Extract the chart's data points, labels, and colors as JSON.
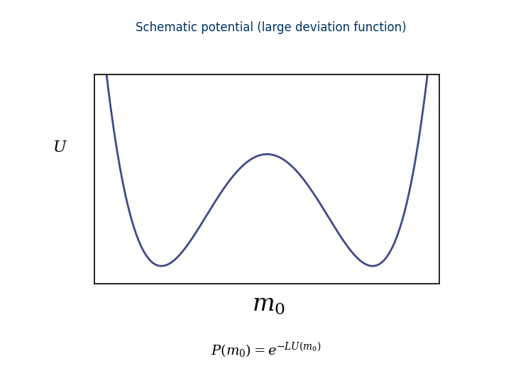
{
  "title": "Schematic potential (large deviation function)",
  "title_color": "#003366",
  "title_fontsize": 12,
  "curve_color": "#3f4a8a",
  "curve_linewidth": 2.0,
  "ylabel_text": "U",
  "ylabel_fontsize": 16,
  "xlabel_math": "$\\mathbf{\\mathit{m}}_0$",
  "xlabel_fontsize": 22,
  "formula": "$P(m_0) = e^{-LU(m_0)}$",
  "formula_fontsize": 14,
  "background": "#ffffff"
}
